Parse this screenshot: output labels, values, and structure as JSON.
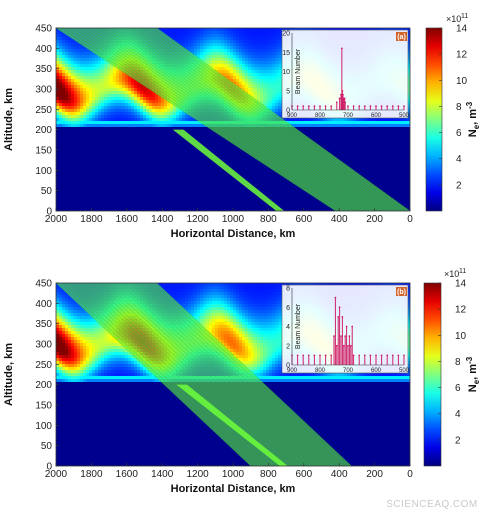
{
  "watermark": "SCIENCEAQ.COM",
  "chart_data": [
    {
      "type": "heatmap",
      "panel_label": "(a)",
      "xlabel": "Horizontal Distance, km",
      "ylabel": "Altitude, km",
      "xlim": [
        2000,
        0
      ],
      "ylim": [
        0,
        450
      ],
      "xticks": [
        2000,
        1800,
        1600,
        1400,
        1200,
        1000,
        800,
        600,
        400,
        200,
        0
      ],
      "yticks": [
        0,
        50,
        100,
        150,
        200,
        250,
        300,
        350,
        400,
        450
      ],
      "colorbar": {
        "label_main": "N",
        "label_sub": "e",
        "label_units": ", m",
        "label_exp": "-3",
        "scale_base": "×10",
        "scale_exp": "11",
        "ticks": [
          2,
          4,
          6,
          8,
          10,
          12,
          14
        ],
        "range": [
          0,
          14
        ],
        "colormap": "jet"
      },
      "density_profile": {
        "layer_bottom_km": 210,
        "peak_altitude_km": 300,
        "peak_value": 14,
        "wave_period_km": 500
      },
      "ray_bundle": {
        "upper_edge": {
          "x": [
            1430,
            0
          ],
          "y": [
            450,
            0
          ]
        },
        "lower_edge": {
          "x": [
            2000,
            420
          ],
          "y": [
            450,
            0
          ]
        },
        "focus_x_km": 720
      },
      "inset": {
        "ylabel": "Beam Number",
        "ylim": [
          0,
          20
        ],
        "yticks": [
          0,
          5,
          10,
          15,
          20
        ],
        "xticks": [
          "900",
          "800",
          "700",
          "600",
          "500"
        ],
        "series": [
          {
            "x": [
              900,
              880,
              860,
              840,
              820,
              800,
              780,
              760,
              740,
              730,
              725,
              722,
              720,
              718,
              715,
              712,
              710,
              700,
              680,
              660,
              640,
              620,
              600,
              580,
              560,
              540,
              520,
              500
            ],
            "y": [
              1,
              1,
              1,
              1,
              1,
              1,
              1,
              1,
              2,
              3,
              4,
              16,
              5,
              4,
              3,
              3,
              2,
              1,
              1,
              1,
              1,
              1,
              1,
              1,
              1,
              1,
              1,
              1
            ]
          }
        ]
      }
    },
    {
      "type": "heatmap",
      "panel_label": "(b)",
      "xlabel": "Horizontal Distance, km",
      "ylabel": "Altitude, km",
      "xlim": [
        2000,
        0
      ],
      "ylim": [
        0,
        450
      ],
      "xticks": [
        2000,
        1800,
        1600,
        1400,
        1200,
        1000,
        800,
        600,
        400,
        200,
        0
      ],
      "yticks": [
        0,
        50,
        100,
        150,
        200,
        250,
        300,
        350,
        400,
        450
      ],
      "colorbar": {
        "label_main": "N",
        "label_sub": "e",
        "label_units": ", m",
        "label_exp": "-3",
        "scale_base": "×10",
        "scale_exp": "11",
        "ticks": [
          2,
          4,
          6,
          8,
          10,
          12,
          14
        ],
        "range": [
          0,
          14
        ],
        "colormap": "jet"
      },
      "density_profile": {
        "layer_bottom_km": 210,
        "peak_altitude_km": 300,
        "peak_value": 14,
        "wave_period_km": 500
      },
      "ray_bundle": {
        "upper_edge": {
          "x": [
            1430,
            330
          ],
          "y": [
            450,
            0
          ]
        },
        "lower_edge": {
          "x": [
            2000,
            900
          ],
          "y": [
            450,
            0
          ]
        },
        "focus_x_km": 700
      },
      "inset": {
        "ylabel": "Beam Number",
        "ylim": [
          0,
          8
        ],
        "yticks": [
          0,
          2,
          4,
          6,
          8
        ],
        "xticks": [
          "900",
          "800",
          "700",
          "600",
          "500"
        ],
        "series": [
          {
            "x": [
              900,
              880,
              860,
              840,
              820,
              800,
              780,
              760,
              750,
              745,
              740,
              735,
              730,
              725,
              720,
              715,
              710,
              705,
              700,
              695,
              690,
              685,
              680,
              660,
              640,
              620,
              600,
              580,
              560,
              540,
              520,
              500
            ],
            "y": [
              1,
              1,
              1,
              1,
              1,
              1,
              1,
              1,
              3,
              7,
              2,
              5,
              6,
              3,
              5,
              2,
              3,
              4,
              2,
              3,
              2,
              4,
              1,
              1,
              1,
              1,
              1,
              1,
              1,
              1,
              1,
              1
            ]
          }
        ]
      }
    }
  ]
}
